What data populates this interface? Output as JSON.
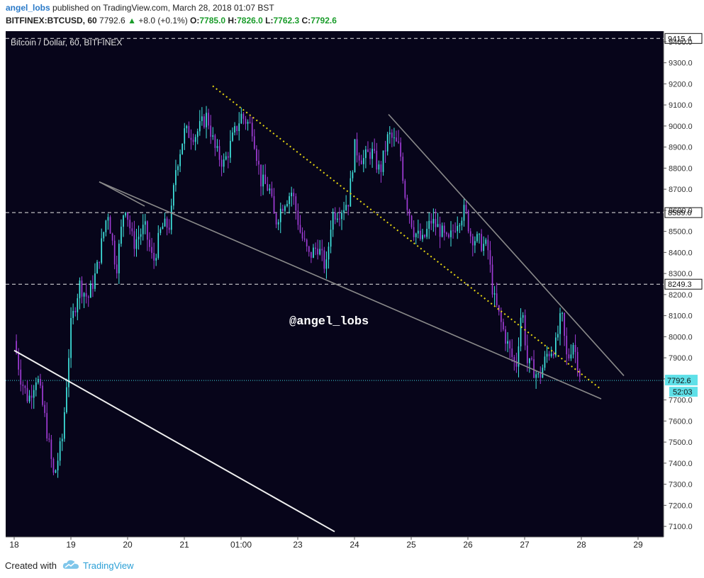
{
  "header": {
    "author": "angel_lobs",
    "published": "published on TradingView.com, March 28, 2018 01:07 BST",
    "symbol": "BITFINEX:BTCUSD, 60",
    "last": "7792.6",
    "change_arrow": "▲",
    "change": "+8.0 (+0.1%)",
    "o_label": "O:",
    "o_value": "7785.0",
    "h_label": "H:",
    "h_value": "7826.0",
    "l_label": "L:",
    "l_value": "7762.3",
    "c_label": "C:",
    "c_value": "7792.6"
  },
  "footer": {
    "created_with": "Created with",
    "brand": "TradingView",
    "logo_icon": "tradingview-cloud-icon"
  },
  "colors": {
    "background": "#07051a",
    "bull": "#40e6e0",
    "bear": "#a03cd6",
    "trend": "#8a8a8a",
    "yellow": "#e8d810",
    "white_line": "#f0f0f0",
    "price_line": "#40d8e0"
  },
  "chart_data": {
    "type": "candlestick",
    "title": "Bitcoin / Dollar, 60, BITFINEX",
    "watermark": "@angel_lobs",
    "y_ticks": [
      9400,
      9300,
      9200,
      9100,
      9000,
      8900,
      8800,
      8700,
      8600,
      8500,
      8400,
      8300,
      8200,
      8100,
      8000,
      7900,
      7800,
      7700,
      7600,
      7500,
      7400,
      7300,
      7200,
      7100
    ],
    "x_ticks": [
      {
        "label": "18",
        "pos": 0.0
      },
      {
        "label": "19",
        "pos": 1.0
      },
      {
        "label": "20",
        "pos": 2.0
      },
      {
        "label": "21",
        "pos": 3.0
      },
      {
        "label": "01:00",
        "pos": 4.0
      },
      {
        "label": "23",
        "pos": 5.0
      },
      {
        "label": "24",
        "pos": 6.0
      },
      {
        "label": "25",
        "pos": 7.0
      },
      {
        "label": "26",
        "pos": 8.0
      },
      {
        "label": "27",
        "pos": 9.0
      },
      {
        "label": "28",
        "pos": 10.0
      },
      {
        "label": "29",
        "pos": 11.0
      }
    ],
    "ylim": [
      7050,
      9450
    ],
    "xlim": [
      -0.15,
      11.45
    ],
    "horizontal_levels": [
      {
        "value": 9415.4,
        "label": "9415.4"
      },
      {
        "value": 8589.0,
        "label": "8589.0"
      },
      {
        "value": 8249.3,
        "label": "8249.3"
      }
    ],
    "last_price": {
      "value": 7792.6,
      "label": "7792.6",
      "countdown": "52:03"
    },
    "trendlines": [
      {
        "name": "upper-channel-line",
        "color": "trend",
        "points": [
          [
            1.5,
            8735
          ],
          [
            2.3,
            8620
          ]
        ]
      },
      {
        "name": "lower-wedge-line",
        "color": "trend",
        "points": [
          [
            1.5,
            8735
          ],
          [
            10.35,
            7705
          ]
        ]
      },
      {
        "name": "falling-wedge-top",
        "color": "trend",
        "points": [
          [
            6.6,
            9055
          ],
          [
            10.75,
            7815
          ]
        ]
      },
      {
        "name": "support-white-line",
        "color": "white_line",
        "points": [
          [
            0.0,
            7935
          ],
          [
            5.65,
            7075
          ]
        ]
      },
      {
        "name": "yellow-dotted-line",
        "color": "yellow",
        "dashed": true,
        "points": [
          [
            3.5,
            9190
          ],
          [
            10.35,
            7750
          ]
        ]
      }
    ],
    "anchors": [
      [
        0.0,
        7980
      ],
      [
        0.12,
        7800
      ],
      [
        0.25,
        7700
      ],
      [
        0.4,
        7820
      ],
      [
        0.55,
        7600
      ],
      [
        0.7,
        7330
      ],
      [
        0.85,
        7520
      ],
      [
        1.0,
        8050
      ],
      [
        1.15,
        8250
      ],
      [
        1.3,
        8180
      ],
      [
        1.45,
        8310
      ],
      [
        1.65,
        8600
      ],
      [
        1.8,
        8320
      ],
      [
        1.95,
        8640
      ],
      [
        2.1,
        8440
      ],
      [
        2.3,
        8520
      ],
      [
        2.45,
        8350
      ],
      [
        2.6,
        8520
      ],
      [
        2.75,
        8530
      ],
      [
        2.85,
        8800
      ],
      [
        3.0,
        8970
      ],
      [
        3.2,
        8960
      ],
      [
        3.4,
        9050
      ],
      [
        3.55,
        8880
      ],
      [
        3.7,
        8820
      ],
      [
        3.85,
        8940
      ],
      [
        4.0,
        9050
      ],
      [
        4.2,
        8990
      ],
      [
        4.35,
        8740
      ],
      [
        4.5,
        8700
      ],
      [
        4.6,
        8540
      ],
      [
        4.75,
        8640
      ],
      [
        4.9,
        8690
      ],
      [
        5.05,
        8490
      ],
      [
        5.2,
        8380
      ],
      [
        5.35,
        8430
      ],
      [
        5.5,
        8320
      ],
      [
        5.6,
        8580
      ],
      [
        5.75,
        8600
      ],
      [
        5.9,
        8650
      ],
      [
        6.0,
        8900
      ],
      [
        6.15,
        8840
      ],
      [
        6.3,
        8880
      ],
      [
        6.45,
        8780
      ],
      [
        6.6,
        8960
      ],
      [
        6.8,
        8890
      ],
      [
        6.9,
        8660
      ],
      [
        7.05,
        8500
      ],
      [
        7.2,
        8450
      ],
      [
        7.35,
        8550
      ],
      [
        7.5,
        8510
      ],
      [
        7.65,
        8440
      ],
      [
        7.8,
        8550
      ],
      [
        7.95,
        8600
      ],
      [
        8.05,
        8480
      ],
      [
        8.2,
        8450
      ],
      [
        8.35,
        8420
      ],
      [
        8.45,
        8190
      ],
      [
        8.6,
        8050
      ],
      [
        8.75,
        7920
      ],
      [
        8.85,
        7860
      ],
      [
        8.95,
        8150
      ],
      [
        9.05,
        7870
      ],
      [
        9.15,
        7850
      ],
      [
        9.25,
        7800
      ],
      [
        9.4,
        7920
      ],
      [
        9.55,
        7960
      ],
      [
        9.65,
        8110
      ],
      [
        9.75,
        7880
      ],
      [
        9.85,
        7980
      ],
      [
        9.95,
        7860
      ],
      [
        10.0,
        7792.6
      ]
    ]
  }
}
